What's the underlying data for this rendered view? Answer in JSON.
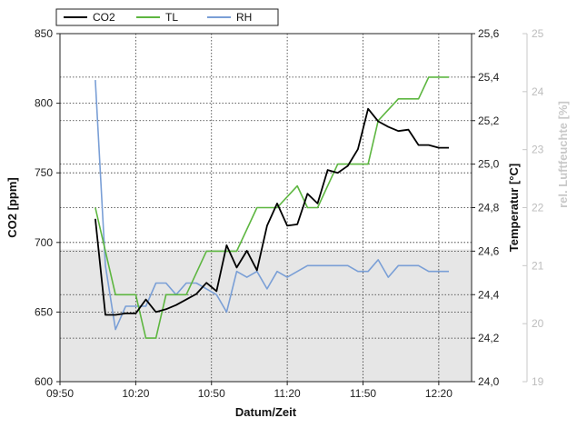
{
  "chart_data": {
    "type": "line",
    "xlabel": "Datum/Zeit",
    "ylabel": "CO2 [ppm]",
    "y2label": "Temperatur [°C]",
    "y3label": "rel. Luftfeuchte [%]",
    "x_ticks": [
      "09:50",
      "10:20",
      "10:50",
      "11:20",
      "11:50",
      "12:20"
    ],
    "x_tick_minutes": [
      590,
      620,
      650,
      680,
      710,
      740
    ],
    "xlim_minutes": [
      590,
      753
    ],
    "y_ticks": [
      "600",
      "650",
      "700",
      "750",
      "800",
      "850"
    ],
    "ylim": [
      600,
      850
    ],
    "y2_ticks": [
      "24,0",
      "24,2",
      "24,4",
      "24,6",
      "24,8",
      "25,0",
      "25,2",
      "25,4",
      "25,6"
    ],
    "y2lim": [
      24.0,
      25.6
    ],
    "y3_ticks": [
      "19",
      "20",
      "21",
      "22",
      "23",
      "24",
      "25"
    ],
    "y3lim": [
      19,
      25
    ],
    "shaded_band_ppm": [
      600,
      695
    ],
    "grid": true,
    "legend": {
      "placement": "top-left"
    },
    "colors": {
      "CO2": "#000000",
      "TL": "#5db640",
      "RH": "#7a9fd6",
      "band": "#e6e6e6"
    },
    "series": [
      {
        "name": "CO2",
        "axis": "ppm",
        "x": [
          "10:04",
          "10:08",
          "10:12",
          "10:16",
          "10:20",
          "10:24",
          "10:28",
          "10:32",
          "10:36",
          "10:40",
          "10:44",
          "10:48",
          "10:52",
          "10:56",
          "11:00",
          "11:04",
          "11:08",
          "11:12",
          "11:16",
          "11:20",
          "11:24",
          "11:28",
          "11:32",
          "11:36",
          "11:40",
          "11:44",
          "11:48",
          "11:52",
          "11:56",
          "12:00",
          "12:04",
          "12:08",
          "12:12",
          "12:16",
          "12:20",
          "12:24"
        ],
        "values": [
          717,
          648,
          648,
          649,
          649,
          659,
          650,
          652,
          655,
          659,
          663,
          671,
          665,
          698,
          682,
          694,
          680,
          712,
          728,
          712,
          713,
          735,
          728,
          752,
          750,
          755,
          767,
          796,
          787,
          783,
          780,
          781,
          770,
          770,
          768,
          768
        ]
      },
      {
        "name": "TL",
        "axis": "degC",
        "x": [
          "10:04",
          "10:12",
          "10:20",
          "10:24",
          "10:28",
          "10:32",
          "10:40",
          "10:48",
          "10:56",
          "11:00",
          "11:08",
          "11:16",
          "11:24",
          "11:28",
          "11:32",
          "11:40",
          "11:48",
          "11:52",
          "11:56",
          "12:04",
          "12:08",
          "12:12",
          "12:16",
          "12:20",
          "12:24"
        ],
        "values": [
          24.8,
          24.4,
          24.4,
          24.2,
          24.2,
          24.4,
          24.4,
          24.6,
          24.6,
          24.6,
          24.8,
          24.8,
          24.9,
          24.8,
          24.8,
          25.0,
          25.0,
          25.0,
          25.2,
          25.3,
          25.3,
          25.3,
          25.4,
          25.4,
          25.4
        ]
      },
      {
        "name": "RH",
        "axis": "percent",
        "x": [
          "10:04",
          "10:08",
          "10:12",
          "10:16",
          "10:20",
          "10:24",
          "10:28",
          "10:32",
          "10:36",
          "10:40",
          "10:44",
          "10:48",
          "10:52",
          "10:56",
          "11:00",
          "11:04",
          "11:08",
          "11:12",
          "11:16",
          "11:20",
          "11:24",
          "11:28",
          "11:32",
          "11:36",
          "11:40",
          "11:44",
          "11:48",
          "11:52",
          "11:56",
          "12:00",
          "12:04",
          "12:08",
          "12:12",
          "12:16",
          "12:20",
          "12:24"
        ],
        "values": [
          24.2,
          21.0,
          19.9,
          20.3,
          20.3,
          20.3,
          20.7,
          20.7,
          20.5,
          20.7,
          20.7,
          20.6,
          20.5,
          20.2,
          20.9,
          20.8,
          20.9,
          20.6,
          20.9,
          20.8,
          20.9,
          21.0,
          21.0,
          21.0,
          21.0,
          21.0,
          20.9,
          20.9,
          21.1,
          20.8,
          21.0,
          21.0,
          21.0,
          20.9,
          20.9,
          20.9
        ]
      }
    ]
  }
}
